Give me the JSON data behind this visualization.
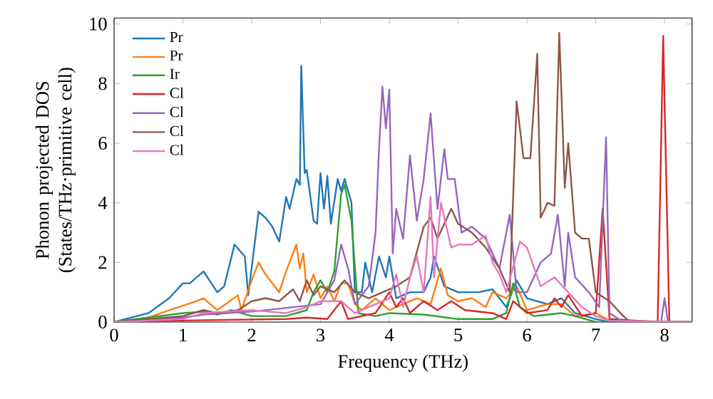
{
  "chart_data": {
    "type": "line",
    "xlabel": "Frequency (THz)",
    "ylabel": "Phonon projected DOS (States/THz·primitive cell)",
    "xlim": [
      0,
      8.4
    ],
    "ylim": [
      0,
      10.2
    ],
    "xticks": [
      0,
      1,
      2,
      3,
      4,
      5,
      6,
      7,
      8
    ],
    "yticks": [
      0,
      2,
      4,
      6,
      8,
      10
    ],
    "legend": "top left",
    "grid": false,
    "series": [
      {
        "name": "Pr",
        "color": "#1f77b4",
        "x": [
          0,
          0.5,
          0.8,
          1.0,
          1.1,
          1.3,
          1.5,
          1.6,
          1.75,
          1.9,
          1.95,
          2.1,
          2.2,
          2.3,
          2.4,
          2.5,
          2.55,
          2.65,
          2.7,
          2.72,
          2.77,
          2.8,
          2.9,
          2.95,
          3.0,
          3.05,
          3.1,
          3.15,
          3.25,
          3.3,
          3.35,
          3.45,
          3.5,
          3.6,
          3.65,
          3.75,
          3.85,
          3.95,
          4.0,
          4.1,
          4.3,
          4.5,
          4.6,
          4.65,
          4.8,
          5.0,
          5.3,
          5.5,
          5.7,
          5.85,
          6.0,
          6.3,
          6.5,
          6.7,
          7.0,
          7.2,
          8.4
        ],
        "values": [
          0,
          0.3,
          0.8,
          1.3,
          1.3,
          1.7,
          1.0,
          1.2,
          2.6,
          2.2,
          0.9,
          3.7,
          3.5,
          3.2,
          2.7,
          4.2,
          3.8,
          4.8,
          4.6,
          8.6,
          5.0,
          5.1,
          3.4,
          3.3,
          5.0,
          3.8,
          4.9,
          3.3,
          4.8,
          4.4,
          4.8,
          4.0,
          1.0,
          1.0,
          2.0,
          1.0,
          2.2,
          1.5,
          2.2,
          0.8,
          1.0,
          1.0,
          1.5,
          2.2,
          1.2,
          1.0,
          1.0,
          1.1,
          0.5,
          1.4,
          0.8,
          0.6,
          0.8,
          0.3,
          0.1,
          0,
          0
        ]
      },
      {
        "name": "Pr",
        "color": "#ff7f0e",
        "x": [
          0,
          0.5,
          0.8,
          1.0,
          1.2,
          1.3,
          1.5,
          1.8,
          1.85,
          2.0,
          2.1,
          2.2,
          2.4,
          2.5,
          2.65,
          2.7,
          2.75,
          2.8,
          2.9,
          3.0,
          3.1,
          3.2,
          3.3,
          3.4,
          3.5,
          3.6,
          3.8,
          4.0,
          4.2,
          4.4,
          4.6,
          4.75,
          4.85,
          5.0,
          5.2,
          5.4,
          5.5,
          5.7,
          5.85,
          6.0,
          6.3,
          6.5,
          6.7,
          7.0,
          7.2,
          8.4
        ],
        "values": [
          0,
          0.15,
          0.4,
          0.55,
          0.7,
          0.8,
          0.4,
          0.9,
          0.4,
          1.4,
          2.0,
          1.6,
          1.0,
          1.7,
          2.6,
          1.8,
          2.3,
          1.0,
          1.6,
          0.8,
          1.2,
          0.7,
          1.3,
          1.3,
          0.6,
          0.4,
          0.8,
          0.4,
          0.6,
          0.8,
          0.6,
          1.8,
          0.9,
          0.7,
          0.8,
          0.5,
          1.0,
          0.8,
          1.2,
          0.4,
          0.6,
          0.6,
          0.2,
          0.3,
          0.05,
          0
        ]
      },
      {
        "name": "Ir",
        "color": "#2ca02c",
        "x": [
          0,
          1.0,
          1.3,
          1.5,
          1.7,
          2.0,
          2.5,
          2.8,
          2.9,
          3.0,
          3.1,
          3.2,
          3.3,
          3.35,
          3.45,
          3.55,
          3.8,
          4.0,
          4.5,
          5.0,
          5.5,
          5.7,
          5.8,
          5.9,
          6.1,
          6.5,
          6.7,
          7.0,
          8.4
        ],
        "values": [
          0,
          0.3,
          0.35,
          0.25,
          0.4,
          0.2,
          0.2,
          0.4,
          1.0,
          1.4,
          1.0,
          1.7,
          4.3,
          4.6,
          3.4,
          0.3,
          0.2,
          0.3,
          0.25,
          0.1,
          0.1,
          0.3,
          1.3,
          0.5,
          0.2,
          0.3,
          0.2,
          0,
          0
        ]
      },
      {
        "name": "Cl",
        "color": "#d62728",
        "x": [
          0,
          1,
          2.5,
          2.8,
          3.1,
          3.3,
          3.4,
          3.8,
          4.0,
          4.1,
          4.2,
          4.3,
          4.5,
          4.7,
          4.9,
          5.1,
          5.5,
          5.7,
          5.8,
          6.0,
          6.3,
          6.4,
          6.5,
          6.6,
          6.8,
          7.0,
          7.1,
          7.2,
          7.9,
          7.98,
          8.07,
          8.4
        ],
        "values": [
          0,
          0.05,
          0.1,
          0.15,
          0.1,
          0.7,
          0.1,
          0.3,
          1.0,
          0.5,
          0.8,
          0.3,
          0.7,
          0.4,
          0.7,
          0.4,
          0.3,
          0.1,
          0.7,
          0.3,
          0.4,
          0.8,
          0.5,
          0.9,
          0.2,
          0.3,
          3.8,
          0.1,
          0,
          9.6,
          0,
          0
        ]
      },
      {
        "name": "Cl",
        "color": "#9467bd",
        "x": [
          0,
          1,
          1.3,
          2,
          2.6,
          3.0,
          3.2,
          3.3,
          3.4,
          3.5,
          3.7,
          3.8,
          3.85,
          3.9,
          3.95,
          4.0,
          4.05,
          4.1,
          4.2,
          4.3,
          4.4,
          4.5,
          4.6,
          4.7,
          4.8,
          4.85,
          4.95,
          5.05,
          5.2,
          5.4,
          5.6,
          5.75,
          5.85,
          6.0,
          6.2,
          6.35,
          6.45,
          6.55,
          6.6,
          6.7,
          6.9,
          7.05,
          7.15,
          7.2,
          7.4,
          7.95,
          8.0,
          8.05,
          8.4
        ],
        "values": [
          0,
          0.15,
          0.25,
          0.35,
          0.5,
          0.6,
          1.4,
          2.6,
          1.8,
          0.6,
          1.2,
          3.0,
          5.8,
          7.9,
          6.5,
          7.8,
          2.3,
          3.8,
          2.8,
          5.6,
          3.4,
          4.8,
          7.0,
          3.8,
          5.8,
          4.8,
          4.8,
          3.0,
          3.2,
          2.8,
          1.8,
          3.6,
          1.0,
          1.0,
          2.0,
          2.3,
          3.6,
          1.2,
          3.0,
          1.5,
          1.0,
          0.5,
          6.2,
          0.3,
          0,
          0,
          0.8,
          0,
          0
        ]
      },
      {
        "name": "Cl",
        "color": "#8c564b",
        "x": [
          0,
          1,
          1.3,
          1.5,
          1.8,
          2.0,
          2.2,
          2.4,
          2.6,
          2.7,
          2.8,
          2.9,
          3.0,
          3.2,
          3.35,
          3.5,
          3.7,
          3.9,
          4.1,
          4.3,
          4.5,
          4.6,
          4.7,
          4.8,
          4.9,
          5.0,
          5.2,
          5.4,
          5.6,
          5.75,
          5.85,
          5.95,
          6.05,
          6.15,
          6.2,
          6.3,
          6.4,
          6.47,
          6.55,
          6.6,
          6.7,
          6.8,
          6.9,
          7.0,
          7.2,
          7.4,
          7.5,
          8.4
        ],
        "values": [
          0,
          0.2,
          0.4,
          0.3,
          0.4,
          0.7,
          0.8,
          0.7,
          1.1,
          0.7,
          1.4,
          0.9,
          1.2,
          1.0,
          1.4,
          1.0,
          0.8,
          1.0,
          1.2,
          1.5,
          3.2,
          3.5,
          2.8,
          3.3,
          3.8,
          3.3,
          3.0,
          2.5,
          1.8,
          1.0,
          7.4,
          5.5,
          5.5,
          9.0,
          3.5,
          4.0,
          3.9,
          9.7,
          4.5,
          6.0,
          3.0,
          2.8,
          2.8,
          1.0,
          0.7,
          0.2,
          0,
          0
        ]
      },
      {
        "name": "Cl",
        "color": "#e377c2",
        "x": [
          0,
          1,
          1.3,
          2,
          2.5,
          2.8,
          3.0,
          3.3,
          3.5,
          3.7,
          4.0,
          4.1,
          4.2,
          4.3,
          4.4,
          4.5,
          4.6,
          4.65,
          4.75,
          4.9,
          5.0,
          5.2,
          5.4,
          5.5,
          5.6,
          5.7,
          5.9,
          6.0,
          6.2,
          6.4,
          6.6,
          6.8,
          7.0,
          7.2,
          8.4
        ],
        "values": [
          0,
          0.1,
          0.3,
          0.4,
          0.3,
          0.5,
          0.7,
          0.7,
          0.3,
          0.5,
          0.8,
          1.6,
          0.5,
          1.5,
          2.2,
          1.0,
          4.2,
          1.5,
          4.0,
          2.5,
          2.6,
          2.6,
          2.9,
          2.0,
          1.6,
          1.0,
          2.7,
          2.5,
          1.2,
          1.5,
          1.0,
          0.5,
          0.2,
          0.05,
          0
        ]
      }
    ]
  }
}
